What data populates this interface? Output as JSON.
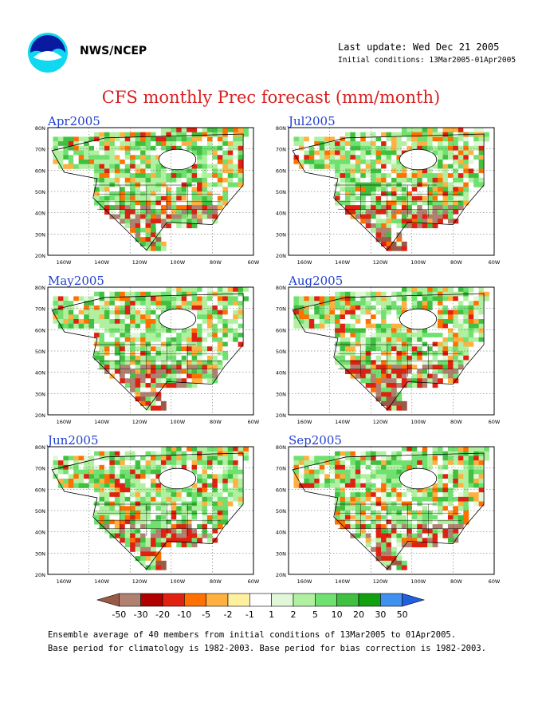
{
  "header": {
    "org": "NWS/NCEP",
    "last_update": "Last update: Wed Dec 21 2005",
    "initial_conditions": "Initial conditions: 13Mar2005-01Apr2005"
  },
  "title": "CFS monthly Prec forecast (mm/month)",
  "panels": [
    {
      "label": "Apr2005"
    },
    {
      "label": "Jul2005"
    },
    {
      "label": "May2005"
    },
    {
      "label": "Aug2005"
    },
    {
      "label": "Jun2005"
    },
    {
      "label": "Sep2005"
    }
  ],
  "axes": {
    "lon_labels": [
      "160W",
      "140W",
      "120W",
      "100W",
      "80W",
      "60W"
    ],
    "lat_labels": [
      "80N",
      "70N",
      "60N",
      "50N",
      "40N",
      "30N",
      "20N"
    ]
  },
  "colorbar": {
    "labels": [
      "-50",
      "-30",
      "-20",
      "-10",
      "-5",
      "-2",
      "-1",
      "1",
      "2",
      "5",
      "10",
      "20",
      "30",
      "50"
    ],
    "colors": [
      "#9a5a48",
      "#b08070",
      "#b00000",
      "#e02010",
      "#ff7000",
      "#ffb040",
      "#fff0a0",
      "#ffffff",
      "#e0f8d8",
      "#b0f0a0",
      "#70e070",
      "#40c040",
      "#10a010",
      "#4090f0",
      "#2060e0"
    ]
  },
  "footer": {
    "line1": "Ensemble average of 40 members from initial conditions of 13Mar2005 to 01Apr2005.",
    "line2": "Base period for climatology is 1982-2003. Base period for bias correction is 1982-2003."
  }
}
